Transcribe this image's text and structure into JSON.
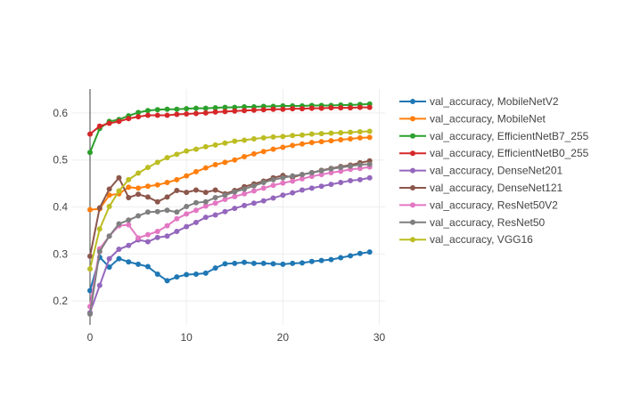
{
  "chart_data": {
    "type": "line",
    "title": "",
    "xlabel": "",
    "ylabel": "",
    "xlim": [
      -1.94,
      30.6
    ],
    "ylim": [
      0.149,
      0.651
    ],
    "xticks": [
      0,
      10,
      20,
      30
    ],
    "yticks": [
      0.2,
      0.3,
      0.4,
      0.5,
      0.6
    ],
    "xtick_labels": [
      "0",
      "10",
      "20",
      "30"
    ],
    "ytick_labels": [
      "0.2",
      "0.3",
      "0.4",
      "0.5",
      "0.6"
    ],
    "grid": true,
    "legend_position": "right",
    "series": [
      {
        "name": "val_accuracy, MobileNetV2",
        "color": "#1f77b4",
        "values": [
          0.222,
          0.293,
          0.272,
          0.29,
          0.283,
          0.278,
          0.273,
          0.257,
          0.243,
          0.251,
          0.256,
          0.257,
          0.259,
          0.27,
          0.279,
          0.28,
          0.282,
          0.28,
          0.28,
          0.279,
          0.278,
          0.28,
          0.281,
          0.284,
          0.286,
          0.288,
          0.292,
          0.296,
          0.301,
          0.304
        ]
      },
      {
        "name": "val_accuracy, MobileNet",
        "color": "#ff7f0e",
        "values": [
          0.394,
          0.396,
          0.425,
          0.428,
          0.442,
          0.44,
          0.444,
          0.447,
          0.452,
          0.458,
          0.466,
          0.475,
          0.483,
          0.49,
          0.495,
          0.5,
          0.507,
          0.513,
          0.518,
          0.523,
          0.527,
          0.531,
          0.534,
          0.537,
          0.539,
          0.541,
          0.543,
          0.545,
          0.547,
          0.548
        ]
      },
      {
        "name": "val_accuracy, EfficientNetB7_255",
        "color": "#2ca02c",
        "values": [
          0.516,
          0.567,
          0.582,
          0.586,
          0.594,
          0.601,
          0.605,
          0.607,
          0.608,
          0.608,
          0.609,
          0.61,
          0.61,
          0.611,
          0.612,
          0.612,
          0.613,
          0.613,
          0.614,
          0.614,
          0.615,
          0.615,
          0.615,
          0.616,
          0.616,
          0.616,
          0.617,
          0.617,
          0.618,
          0.619
        ]
      },
      {
        "name": "val_accuracy, EfficientNetB0_255",
        "color": "#d62728",
        "values": [
          0.555,
          0.572,
          0.578,
          0.582,
          0.588,
          0.592,
          0.595,
          0.595,
          0.595,
          0.597,
          0.598,
          0.599,
          0.6,
          0.602,
          0.603,
          0.604,
          0.605,
          0.606,
          0.607,
          0.608,
          0.608,
          0.609,
          0.609,
          0.61,
          0.61,
          0.611,
          0.611,
          0.611,
          0.612,
          0.612
        ]
      },
      {
        "name": "val_accuracy, DenseNet201",
        "color": "#9467bd",
        "values": [
          0.175,
          0.233,
          0.29,
          0.31,
          0.318,
          0.33,
          0.326,
          0.335,
          0.338,
          0.348,
          0.358,
          0.367,
          0.378,
          0.383,
          0.39,
          0.397,
          0.403,
          0.408,
          0.413,
          0.419,
          0.425,
          0.43,
          0.436,
          0.44,
          0.444,
          0.448,
          0.452,
          0.456,
          0.458,
          0.462
        ]
      },
      {
        "name": "val_accuracy, DenseNet121",
        "color": "#8c564b",
        "values": [
          0.295,
          0.398,
          0.438,
          0.462,
          0.42,
          0.427,
          0.421,
          0.411,
          0.421,
          0.435,
          0.431,
          0.436,
          0.431,
          0.436,
          0.428,
          0.435,
          0.443,
          0.449,
          0.455,
          0.462,
          0.467,
          0.463,
          0.469,
          0.473,
          0.478,
          0.482,
          0.486,
          0.489,
          0.494,
          0.498
        ]
      },
      {
        "name": "val_accuracy, ResNet50V2",
        "color": "#e377c2",
        "values": [
          0.188,
          0.311,
          0.338,
          0.36,
          0.362,
          0.334,
          0.341,
          0.348,
          0.36,
          0.375,
          0.385,
          0.393,
          0.402,
          0.408,
          0.416,
          0.422,
          0.428,
          0.434,
          0.44,
          0.446,
          0.451,
          0.455,
          0.46,
          0.465,
          0.469,
          0.473,
          0.476,
          0.48,
          0.482,
          0.485
        ]
      },
      {
        "name": "val_accuracy, ResNet50",
        "color": "#7f7f7f",
        "values": [
          0.172,
          0.305,
          0.338,
          0.364,
          0.372,
          0.381,
          0.389,
          0.39,
          0.393,
          0.389,
          0.401,
          0.409,
          0.411,
          0.42,
          0.425,
          0.432,
          0.438,
          0.445,
          0.452,
          0.458,
          0.462,
          0.466,
          0.469,
          0.473,
          0.477,
          0.481,
          0.484,
          0.487,
          0.49,
          0.491
        ]
      },
      {
        "name": "val_accuracy, VGG16",
        "color": "#bcbd22",
        "values": [
          0.268,
          0.353,
          0.401,
          0.434,
          0.458,
          0.472,
          0.484,
          0.495,
          0.505,
          0.512,
          0.519,
          0.523,
          0.528,
          0.532,
          0.536,
          0.54,
          0.542,
          0.545,
          0.547,
          0.549,
          0.55,
          0.552,
          0.553,
          0.555,
          0.556,
          0.557,
          0.558,
          0.559,
          0.56,
          0.561
        ]
      }
    ]
  }
}
